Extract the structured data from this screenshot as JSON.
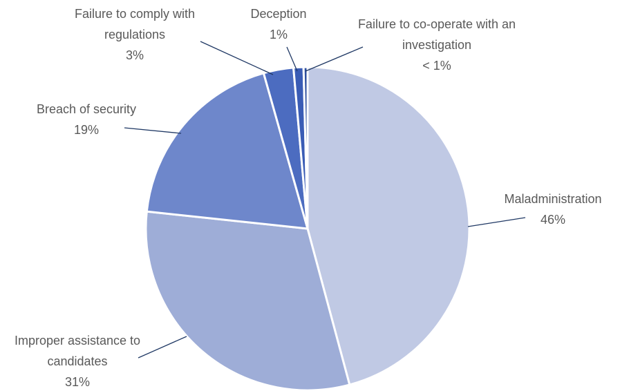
{
  "chart_data": {
    "type": "pie",
    "categories": [
      "Maladministration",
      "Improper assistance to candidates",
      "Breach of security",
      "Failure to comply with regulations",
      "Deception",
      "Failure to co-operate with an investigation"
    ],
    "values": [
      46,
      31,
      19,
      3,
      1,
      0.4
    ],
    "value_labels": [
      "46%",
      "31%",
      "19%",
      "3%",
      "1%",
      "< 1%"
    ],
    "colors": [
      "#c0c9e4",
      "#9eadd7",
      "#6e87cb",
      "#4c6cc0",
      "#3a5cb5",
      "#2e4f9e"
    ]
  }
}
